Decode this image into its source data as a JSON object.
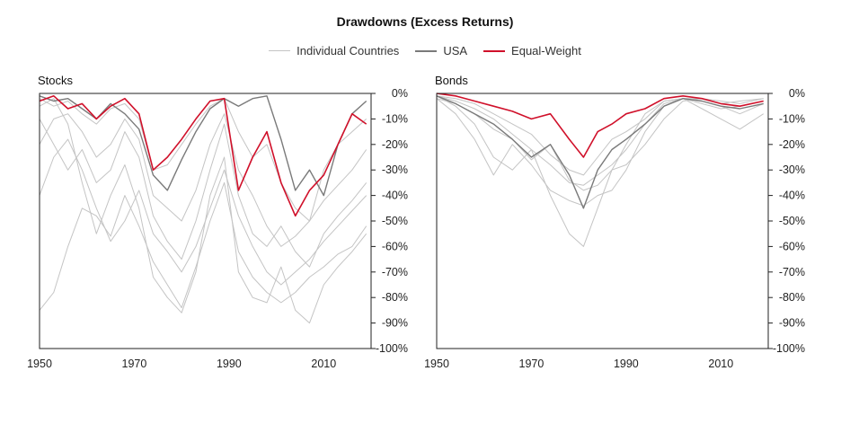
{
  "chart_data": {
    "type": "line",
    "title": "Drawdowns (Excess Returns)",
    "legend": {
      "placement": "top-center",
      "entries": [
        {
          "name": "Individual Countries",
          "color": "#c4c4c4"
        },
        {
          "name": "USA",
          "color": "#7a7a7a"
        },
        {
          "name": "Equal-Weight",
          "color": "#d0102a"
        }
      ]
    },
    "panels": [
      {
        "title": "Stocks",
        "xlim": [
          1950,
          2020
        ],
        "ylim": [
          -100,
          0
        ],
        "xticks": [
          "1950",
          "1970",
          "1990",
          "2010"
        ],
        "yticks": [
          "0%",
          "-10%",
          "-20%",
          "-30%",
          "-40%",
          "-50%",
          "-60%",
          "-70%",
          "-80%",
          "-90%",
          "-100%"
        ],
        "series": [
          {
            "name": "Individual Countries",
            "role": "country",
            "x": [
              1950,
              1953,
              1956,
              1959,
              1962,
              1965,
              1968,
              1971,
              1974,
              1977,
              1980,
              1983,
              1986,
              1989,
              1992,
              1995,
              1998,
              2001,
              2004,
              2007,
              2010,
              2013,
              2016,
              2019
            ],
            "values": [
              -5,
              -2,
              -12,
              -35,
              -55,
              -40,
              -28,
              -45,
              -72,
              -80,
              -86,
              -70,
              -40,
              -25,
              -70,
              -80,
              -82,
              -68,
              -85,
              -90,
              -75,
              -68,
              -62,
              -55
            ]
          },
          {
            "name": "Individual Countries",
            "role": "country",
            "x": [
              1950,
              1953,
              1956,
              1959,
              1962,
              1965,
              1968,
              1971,
              1974,
              1977,
              1980,
              1983,
              1986,
              1989,
              1992,
              1995,
              1998,
              2001,
              2004,
              2007,
              2010,
              2013,
              2016,
              2019
            ],
            "values": [
              -85,
              -78,
              -60,
              -45,
              -48,
              -56,
              -40,
              -52,
              -66,
              -75,
              -84,
              -68,
              -50,
              -35,
              -62,
              -72,
              -78,
              -82,
              -78,
              -72,
              -68,
              -63,
              -60,
              -52
            ]
          },
          {
            "name": "Individual Countries",
            "role": "country",
            "x": [
              1950,
              1953,
              1956,
              1959,
              1962,
              1965,
              1968,
              1971,
              1974,
              1977,
              1980,
              1983,
              1986,
              1989,
              1992,
              1995,
              1998,
              2001,
              2004,
              2007,
              2010,
              2013,
              2016,
              2019
            ],
            "values": [
              -40,
              -25,
              -18,
              -30,
              -45,
              -58,
              -50,
              -38,
              -55,
              -62,
              -70,
              -60,
              -45,
              -30,
              -48,
              -60,
              -70,
              -75,
              -70,
              -65,
              -58,
              -52,
              -46,
              -40
            ]
          },
          {
            "name": "Individual Countries",
            "role": "country",
            "x": [
              1950,
              1953,
              1956,
              1959,
              1962,
              1965,
              1968,
              1971,
              1974,
              1977,
              1980,
              1983,
              1986,
              1989,
              1992,
              1995,
              1998,
              2001,
              2004,
              2007,
              2010,
              2013,
              2016,
              2019
            ],
            "values": [
              -10,
              -20,
              -30,
              -22,
              -35,
              -30,
              -15,
              -25,
              -48,
              -58,
              -65,
              -50,
              -30,
              -12,
              -40,
              -55,
              -60,
              -52,
              -62,
              -68,
              -55,
              -48,
              -42,
              -35
            ]
          },
          {
            "name": "Individual Countries",
            "role": "country",
            "x": [
              1950,
              1953,
              1956,
              1959,
              1962,
              1965,
              1968,
              1971,
              1974,
              1977,
              1980,
              1983,
              1986,
              1989,
              1992,
              1995,
              1998,
              2001,
              2004,
              2007,
              2010,
              2013,
              2016,
              2019
            ],
            "values": [
              -20,
              -10,
              -8,
              -15,
              -25,
              -20,
              -10,
              -18,
              -40,
              -45,
              -50,
              -38,
              -20,
              -8,
              -30,
              -40,
              -52,
              -60,
              -56,
              -50,
              -42,
              -36,
              -30,
              -22
            ]
          },
          {
            "name": "Individual Countries",
            "role": "country",
            "x": [
              1950,
              1953,
              1956,
              1959,
              1962,
              1965,
              1968,
              1971,
              1974,
              1977,
              1980,
              1983,
              1986,
              1989,
              1992,
              1995,
              1998,
              2001,
              2004,
              2007,
              2010,
              2013,
              2016,
              2019
            ],
            "values": [
              -2,
              -5,
              -3,
              -8,
              -12,
              -6,
              -4,
              -10,
              -30,
              -28,
              -20,
              -12,
              -5,
              -2,
              -15,
              -25,
              -20,
              -35,
              -45,
              -50,
              -30,
              -20,
              -15,
              -10
            ]
          },
          {
            "name": "USA",
            "role": "usa",
            "x": [
              1950,
              1953,
              1956,
              1959,
              1962,
              1965,
              1968,
              1971,
              1974,
              1977,
              1980,
              1983,
              1986,
              1989,
              1992,
              1995,
              1998,
              2001,
              2004,
              2007,
              2010,
              2013,
              2016,
              2019
            ],
            "values": [
              -1,
              -3,
              -2,
              -6,
              -10,
              -4,
              -8,
              -14,
              -32,
              -38,
              -26,
              -15,
              -6,
              -2,
              -5,
              -2,
              -1,
              -18,
              -38,
              -30,
              -40,
              -20,
              -8,
              -3
            ]
          },
          {
            "name": "Equal-Weight",
            "role": "ew",
            "x": [
              1950,
              1953,
              1956,
              1959,
              1962,
              1965,
              1968,
              1971,
              1974,
              1977,
              1980,
              1983,
              1986,
              1989,
              1992,
              1995,
              1998,
              2001,
              2004,
              2007,
              2010,
              2013,
              2016,
              2019
            ],
            "values": [
              -3,
              -1,
              -6,
              -4,
              -10,
              -5,
              -2,
              -8,
              -30,
              -25,
              -18,
              -10,
              -3,
              -2,
              -38,
              -25,
              -15,
              -35,
              -48,
              -38,
              -32,
              -20,
              -8,
              -12
            ]
          }
        ]
      },
      {
        "title": "Bonds",
        "xlim": [
          1950,
          2020
        ],
        "ylim": [
          -100,
          0
        ],
        "xticks": [
          "1950",
          "1970",
          "1990",
          "2010"
        ],
        "yticks": [
          "0%",
          "-10%",
          "-20%",
          "-30%",
          "-40%",
          "-50%",
          "-60%",
          "-70%",
          "-80%",
          "-90%",
          "-100%"
        ],
        "series": [
          {
            "name": "Individual Countries",
            "role": "country",
            "x": [
              1950,
              1954,
              1958,
              1962,
              1966,
              1970,
              1974,
              1978,
              1981,
              1984,
              1987,
              1990,
              1994,
              1998,
              2002,
              2006,
              2010,
              2014,
              2019
            ],
            "values": [
              -1,
              -5,
              -12,
              -25,
              -30,
              -22,
              -40,
              -55,
              -60,
              -45,
              -30,
              -20,
              -8,
              -3,
              -2,
              -4,
              -6,
              -5,
              -3
            ]
          },
          {
            "name": "Individual Countries",
            "role": "country",
            "x": [
              1950,
              1954,
              1958,
              1962,
              1966,
              1970,
              1974,
              1978,
              1981,
              1984,
              1987,
              1990,
              1994,
              1998,
              2002,
              2006,
              2010,
              2014,
              2019
            ],
            "values": [
              -2,
              -8,
              -18,
              -32,
              -20,
              -28,
              -38,
              -42,
              -44,
              -40,
              -38,
              -30,
              -15,
              -5,
              -2,
              -3,
              -5,
              -8,
              -4
            ]
          },
          {
            "name": "Individual Countries",
            "role": "country",
            "x": [
              1950,
              1954,
              1958,
              1962,
              1966,
              1970,
              1974,
              1978,
              1981,
              1984,
              1987,
              1990,
              1994,
              1998,
              2002,
              2006,
              2010,
              2014,
              2019
            ],
            "values": [
              -1,
              -3,
              -6,
              -10,
              -16,
              -22,
              -28,
              -35,
              -36,
              -32,
              -28,
              -22,
              -12,
              -4,
              -2,
              -6,
              -10,
              -14,
              -8
            ]
          },
          {
            "name": "Individual Countries",
            "role": "country",
            "x": [
              1950,
              1954,
              1958,
              1962,
              1966,
              1970,
              1974,
              1978,
              1981,
              1984,
              1987,
              1990,
              1994,
              1998,
              2002,
              2006,
              2010,
              2014,
              2019
            ],
            "values": [
              -1,
              -2,
              -4,
              -8,
              -12,
              -16,
              -24,
              -30,
              -32,
              -25,
              -18,
              -15,
              -10,
              -3,
              -2,
              -2,
              -3,
              -4,
              -2
            ]
          },
          {
            "name": "Individual Countries",
            "role": "country",
            "x": [
              1950,
              1954,
              1958,
              1962,
              1966,
              1970,
              1974,
              1978,
              1981,
              1984,
              1987,
              1990,
              1994,
              1998,
              2002,
              2006,
              2010,
              2014,
              2019
            ],
            "values": [
              -2,
              -4,
              -8,
              -14,
              -18,
              -26,
              -20,
              -34,
              -38,
              -36,
              -30,
              -28,
              -20,
              -10,
              -3,
              -2,
              -4,
              -3,
              -2
            ]
          },
          {
            "name": "USA",
            "role": "usa",
            "x": [
              1950,
              1954,
              1958,
              1962,
              1966,
              1970,
              1974,
              1978,
              1981,
              1984,
              1987,
              1990,
              1994,
              1998,
              2002,
              2006,
              2010,
              2014,
              2019
            ],
            "values": [
              -1,
              -4,
              -8,
              -12,
              -18,
              -25,
              -20,
              -32,
              -45,
              -30,
              -22,
              -18,
              -12,
              -5,
              -2,
              -3,
              -5,
              -6,
              -4
            ]
          },
          {
            "name": "Equal-Weight",
            "role": "ew",
            "x": [
              1950,
              1954,
              1958,
              1962,
              1966,
              1970,
              1974,
              1978,
              1981,
              1984,
              1987,
              1990,
              1994,
              1998,
              2002,
              2006,
              2010,
              2014,
              2019
            ],
            "values": [
              0,
              -1,
              -3,
              -5,
              -7,
              -10,
              -8,
              -18,
              -25,
              -15,
              -12,
              -8,
              -6,
              -2,
              -1,
              -2,
              -4,
              -5,
              -3
            ]
          }
        ]
      }
    ]
  }
}
